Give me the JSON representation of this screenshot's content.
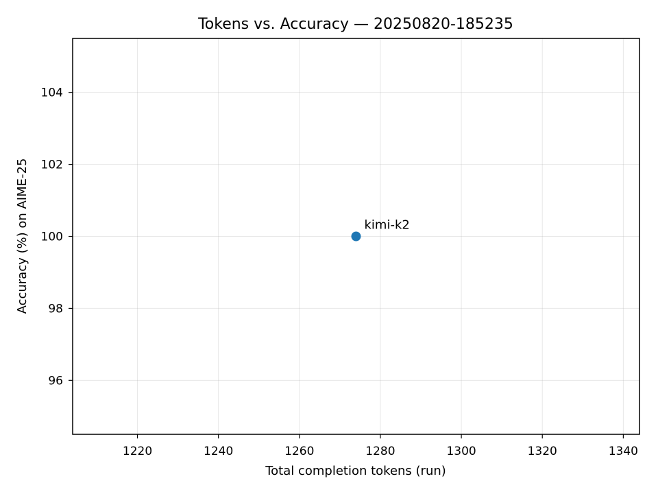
{
  "chart_data": {
    "type": "scatter",
    "title": "Tokens vs. Accuracy — 20250820-185235",
    "xlabel": "Total completion tokens (run)",
    "ylabel": "Accuracy (%) on AIME-25",
    "xlim": [
      1204,
      1344
    ],
    "ylim": [
      94.5,
      105.5
    ],
    "xticks": [
      1220,
      1240,
      1260,
      1280,
      1300,
      1320,
      1340
    ],
    "yticks": [
      96,
      98,
      100,
      102,
      104
    ],
    "grid": true,
    "points": [
      {
        "label": "kimi-k2",
        "x": 1274,
        "y": 100,
        "color": "#1f77b4"
      }
    ]
  }
}
